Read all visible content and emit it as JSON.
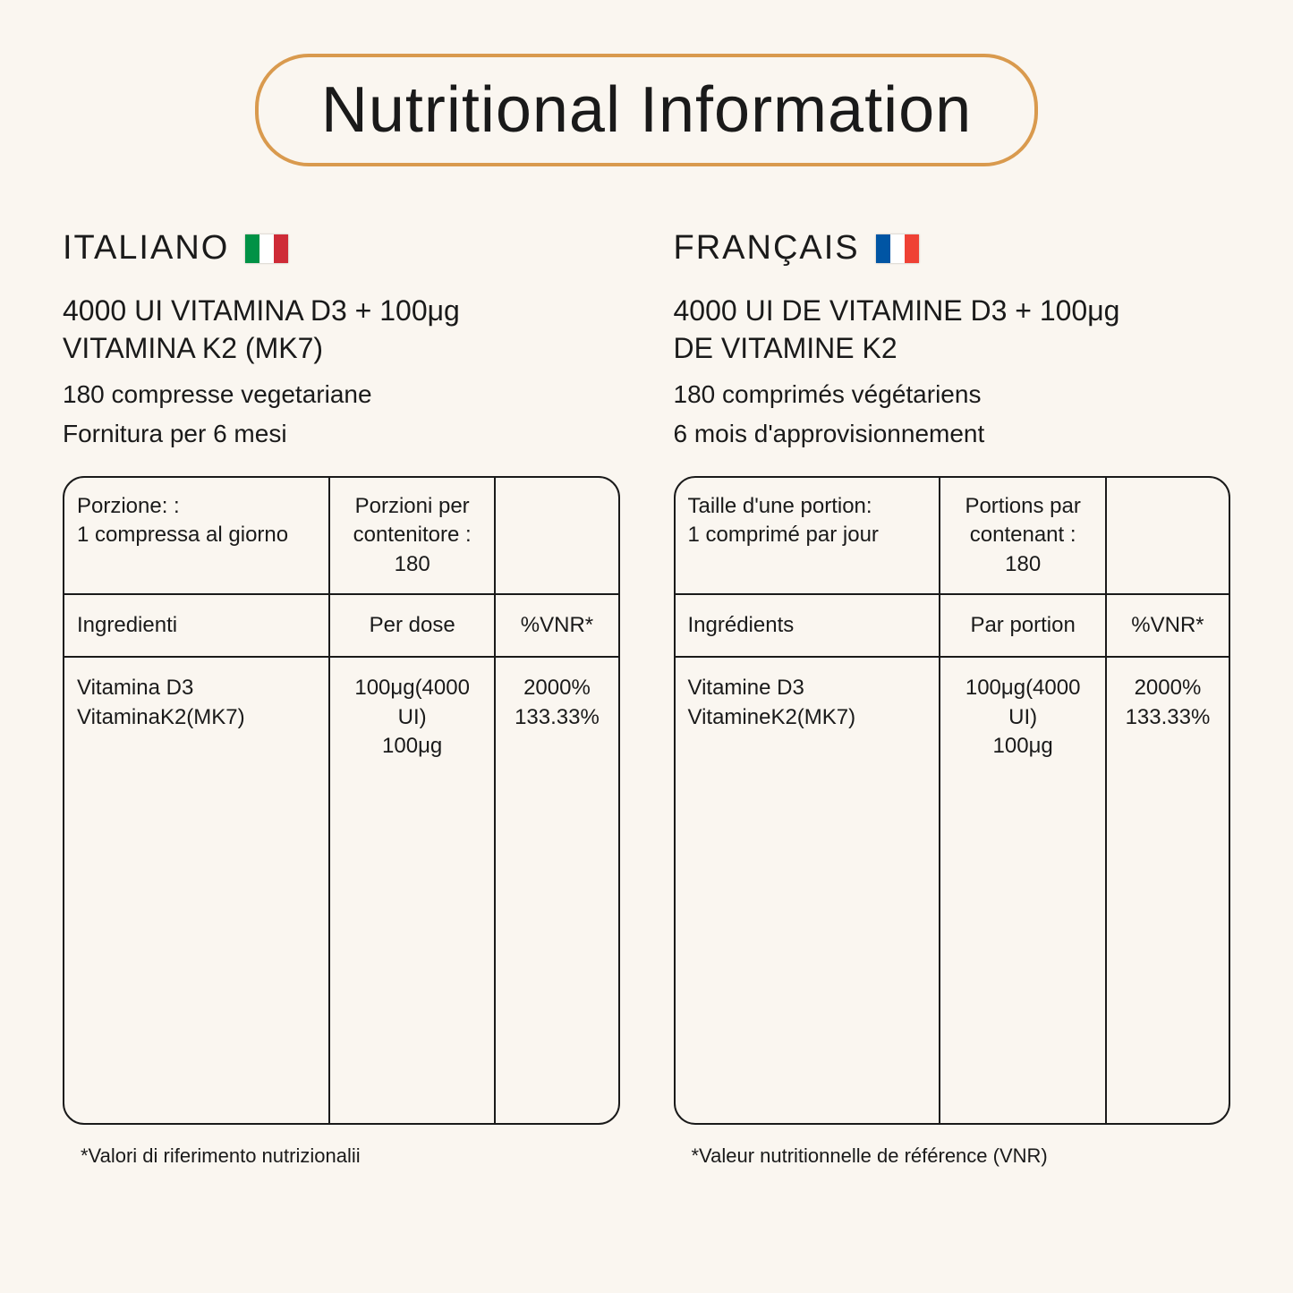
{
  "title": "Nutritional Information",
  "title_border_color": "#d99a4e",
  "background_color": "#faf6f0",
  "text_color": "#1a1a1a",
  "flags": {
    "italy": [
      "#009246",
      "#ffffff",
      "#ce2b37"
    ],
    "france": [
      "#0055a4",
      "#ffffff",
      "#ef4135"
    ]
  },
  "left": {
    "lang": "ITALIANO",
    "flag": "italy",
    "product_line1": "4000 UI VITAMINA D3 + 100μg",
    "product_line2": "VITAMINA K2 (MK7)",
    "sub1": "180 compresse vegetariane",
    "sub2": "Fornitura per 6 mesi",
    "serving_label": "Porzione: :",
    "serving_value": "1 compressa al giorno",
    "servings_per_label": "Porzioni per contenitore :",
    "servings_per_value": "180",
    "col_ingredients": "Ingredienti",
    "col_perdose": "Per dose",
    "col_vnr": "%VNR*",
    "ing1": "Vitamina D3",
    "ing2": "VitaminaK2(MK7)",
    "dose1": "100μg(4000 UI)",
    "dose2": "100μg",
    "vnr1": "2000%",
    "vnr2": "133.33%",
    "footnote": "*Valori di riferimento nutrizionalii"
  },
  "right": {
    "lang": "FRANÇAIS",
    "flag": "france",
    "product_line1": "4000 UI DE VITAMINE D3 + 100μg",
    "product_line2": "DE VITAMINE K2",
    "sub1": "180 comprimés végétariens",
    "sub2": "6 mois d'approvisionnement",
    "serving_label": "Taille d'une portion:",
    "serving_value": "1 comprimé par jour",
    "servings_per_label": "Portions par contenant :",
    "servings_per_value": "180",
    "col_ingredients": "Ingrédients",
    "col_perdose": "Par portion",
    "col_vnr": "%VNR*",
    "ing1": "Vitamine D3",
    "ing2": "VitamineK2(MK7)",
    "dose1": "100μg(4000 UI)",
    "dose2": "100μg",
    "vnr1": "2000%",
    "vnr2": "133.33%",
    "footnote": "*Valeur nutritionnelle de référence (VNR)"
  }
}
